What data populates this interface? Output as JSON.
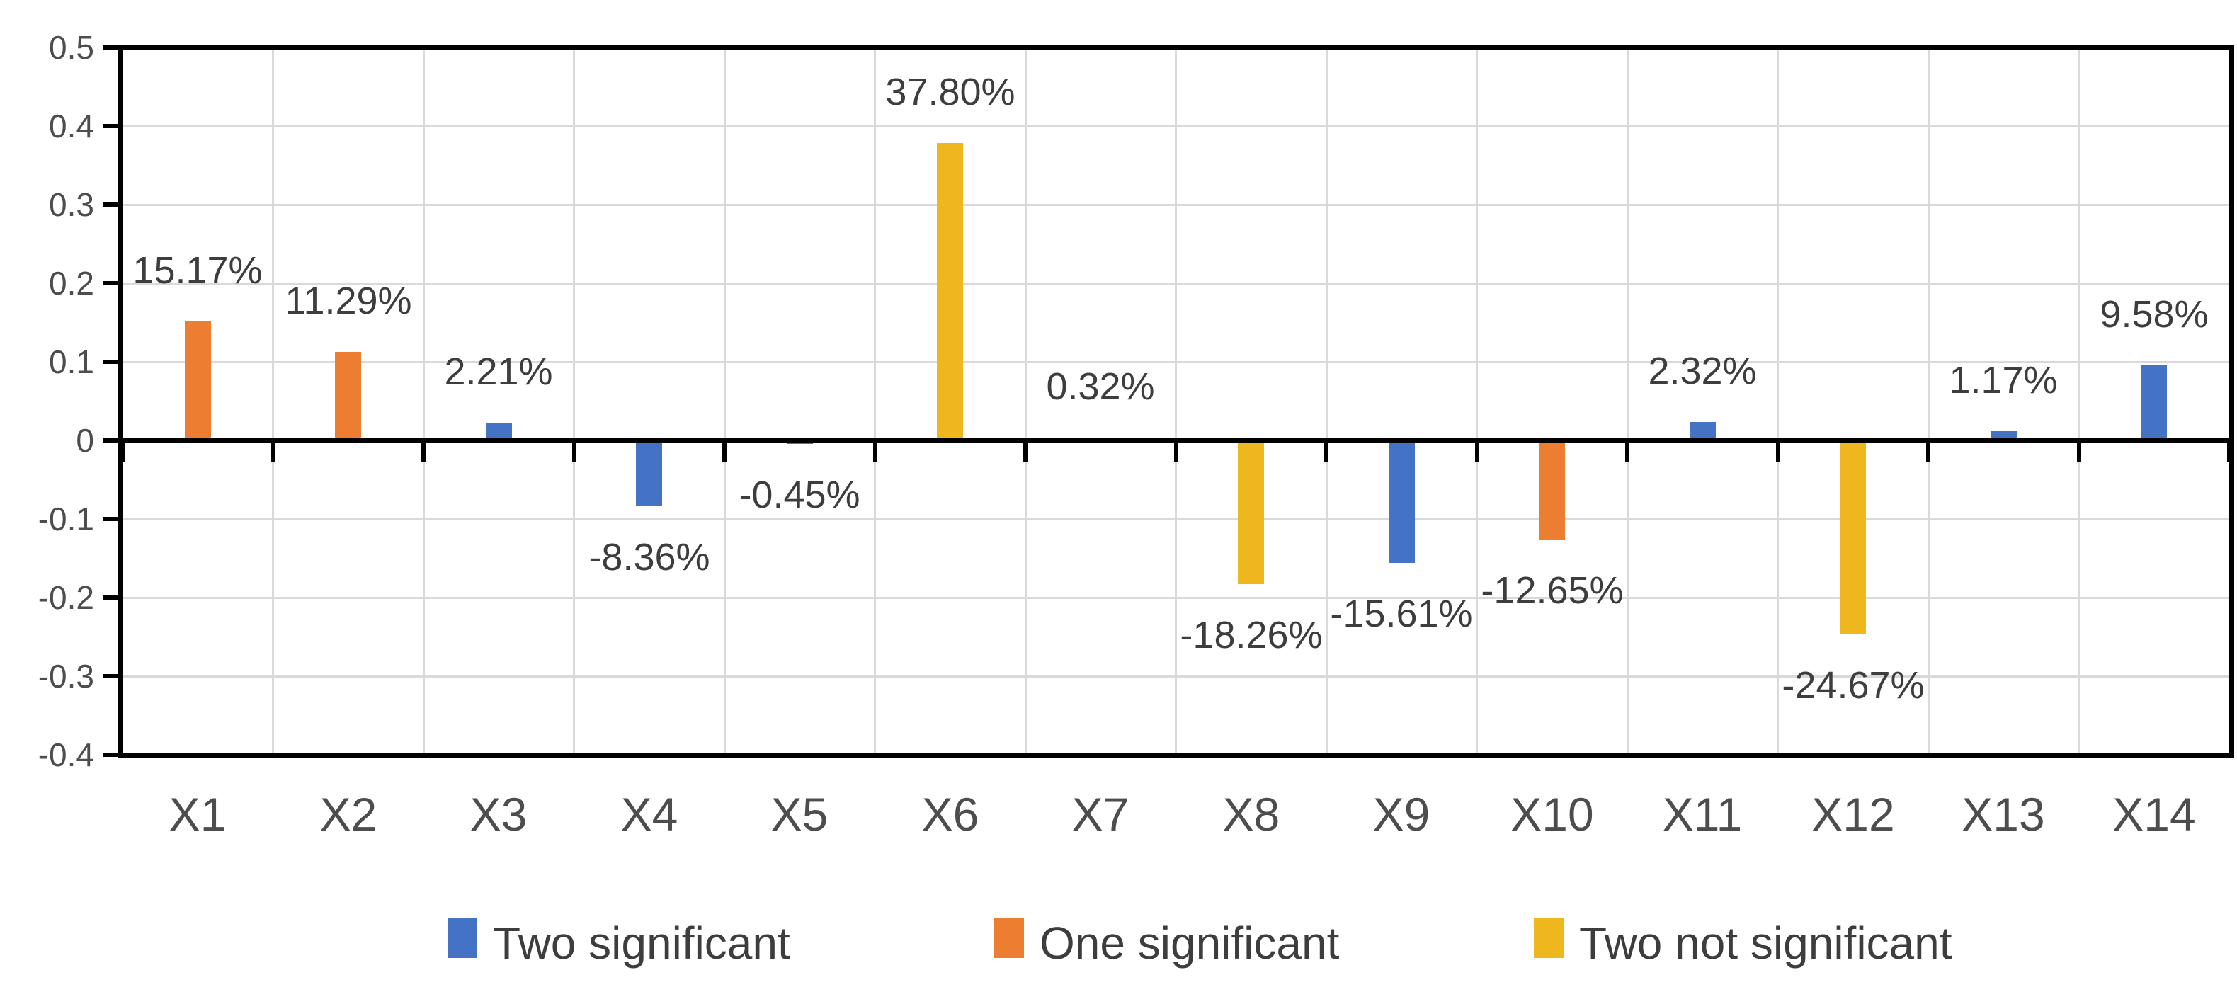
{
  "chart_data": {
    "type": "bar",
    "title": "",
    "xlabel": "",
    "ylabel": "",
    "categories": [
      "X1",
      "X2",
      "X3",
      "X4",
      "X5",
      "X6",
      "X7",
      "X8",
      "X9",
      "X10",
      "X11",
      "X12",
      "X13",
      "X14"
    ],
    "series": [
      {
        "name": "Two significant",
        "color": "#4472C4"
      },
      {
        "name": "One significant",
        "color": "#ED7D31"
      },
      {
        "name": "Two not significant",
        "color": "#EFB71E"
      }
    ],
    "points": [
      {
        "category": "X1",
        "series": "One significant",
        "value": 0.1517,
        "label": "15.17%"
      },
      {
        "category": "X2",
        "series": "One significant",
        "value": 0.1129,
        "label": "11.29%"
      },
      {
        "category": "X3",
        "series": "Two significant",
        "value": 0.0221,
        "label": "2.21%"
      },
      {
        "category": "X4",
        "series": "Two significant",
        "value": -0.0836,
        "label": "-8.36%"
      },
      {
        "category": "X5",
        "series": "Two significant",
        "value": -0.0045,
        "label": "-0.45%"
      },
      {
        "category": "X6",
        "series": "Two not significant",
        "value": 0.378,
        "label": "37.80%"
      },
      {
        "category": "X7",
        "series": "Two significant",
        "value": 0.0032,
        "label": "0.32%"
      },
      {
        "category": "X8",
        "series": "Two not significant",
        "value": -0.1826,
        "label": "-18.26%"
      },
      {
        "category": "X9",
        "series": "Two significant",
        "value": -0.1561,
        "label": "-15.61%"
      },
      {
        "category": "X10",
        "series": "One significant",
        "value": -0.1265,
        "label": "-12.65%"
      },
      {
        "category": "X11",
        "series": "Two significant",
        "value": 0.0232,
        "label": "2.32%"
      },
      {
        "category": "X12",
        "series": "Two not significant",
        "value": -0.2467,
        "label": "-24.67%"
      },
      {
        "category": "X13",
        "series": "Two significant",
        "value": 0.0117,
        "label": "1.17%"
      },
      {
        "category": "X14",
        "series": "Two significant",
        "value": 0.0958,
        "label": "9.58%"
      }
    ],
    "y_axis": {
      "min": -0.4,
      "max": 0.5,
      "step": 0.1,
      "tick_labels": [
        "0.5",
        "0.4",
        "0.3",
        "0.2",
        "0.1",
        "0",
        "-0.1",
        "-0.2",
        "-0.3",
        "-0.4"
      ]
    },
    "grid": true,
    "legend_position": "bottom",
    "legend": [
      "Two significant",
      "One significant",
      "Two not significant"
    ]
  },
  "colors": {
    "axis": "#000000",
    "gridline": "#D9D9D9",
    "tick_label": "#4d4d4d",
    "data_label": "#3d3d3d",
    "background": "#ffffff"
  }
}
